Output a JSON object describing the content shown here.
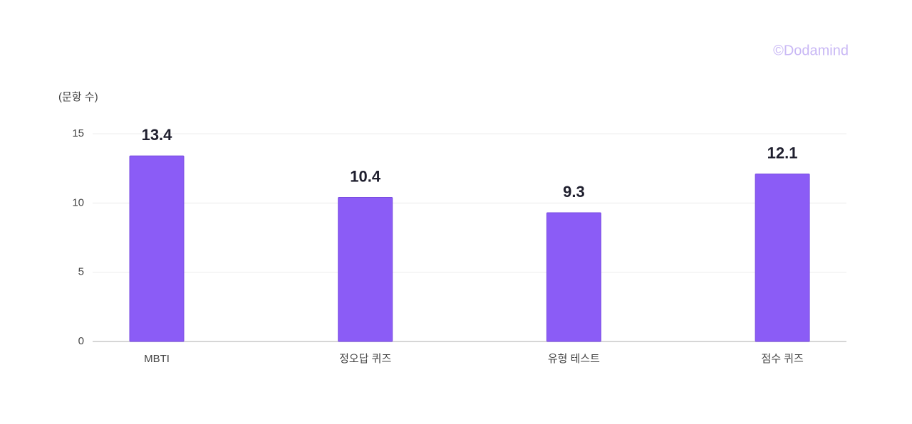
{
  "chart_data": {
    "type": "bar",
    "y_label": "(문항 수)",
    "watermark": "©Dodamind",
    "categories": [
      "MBTI",
      "정오답 퀴즈",
      "유형 테스트",
      "점수 퀴즈"
    ],
    "values": [
      13.4,
      10.4,
      9.3,
      12.1
    ],
    "color": "#8b5cf6",
    "ylim": [
      0,
      15
    ],
    "yticks": [
      0,
      5,
      10,
      15
    ],
    "grid": true
  }
}
